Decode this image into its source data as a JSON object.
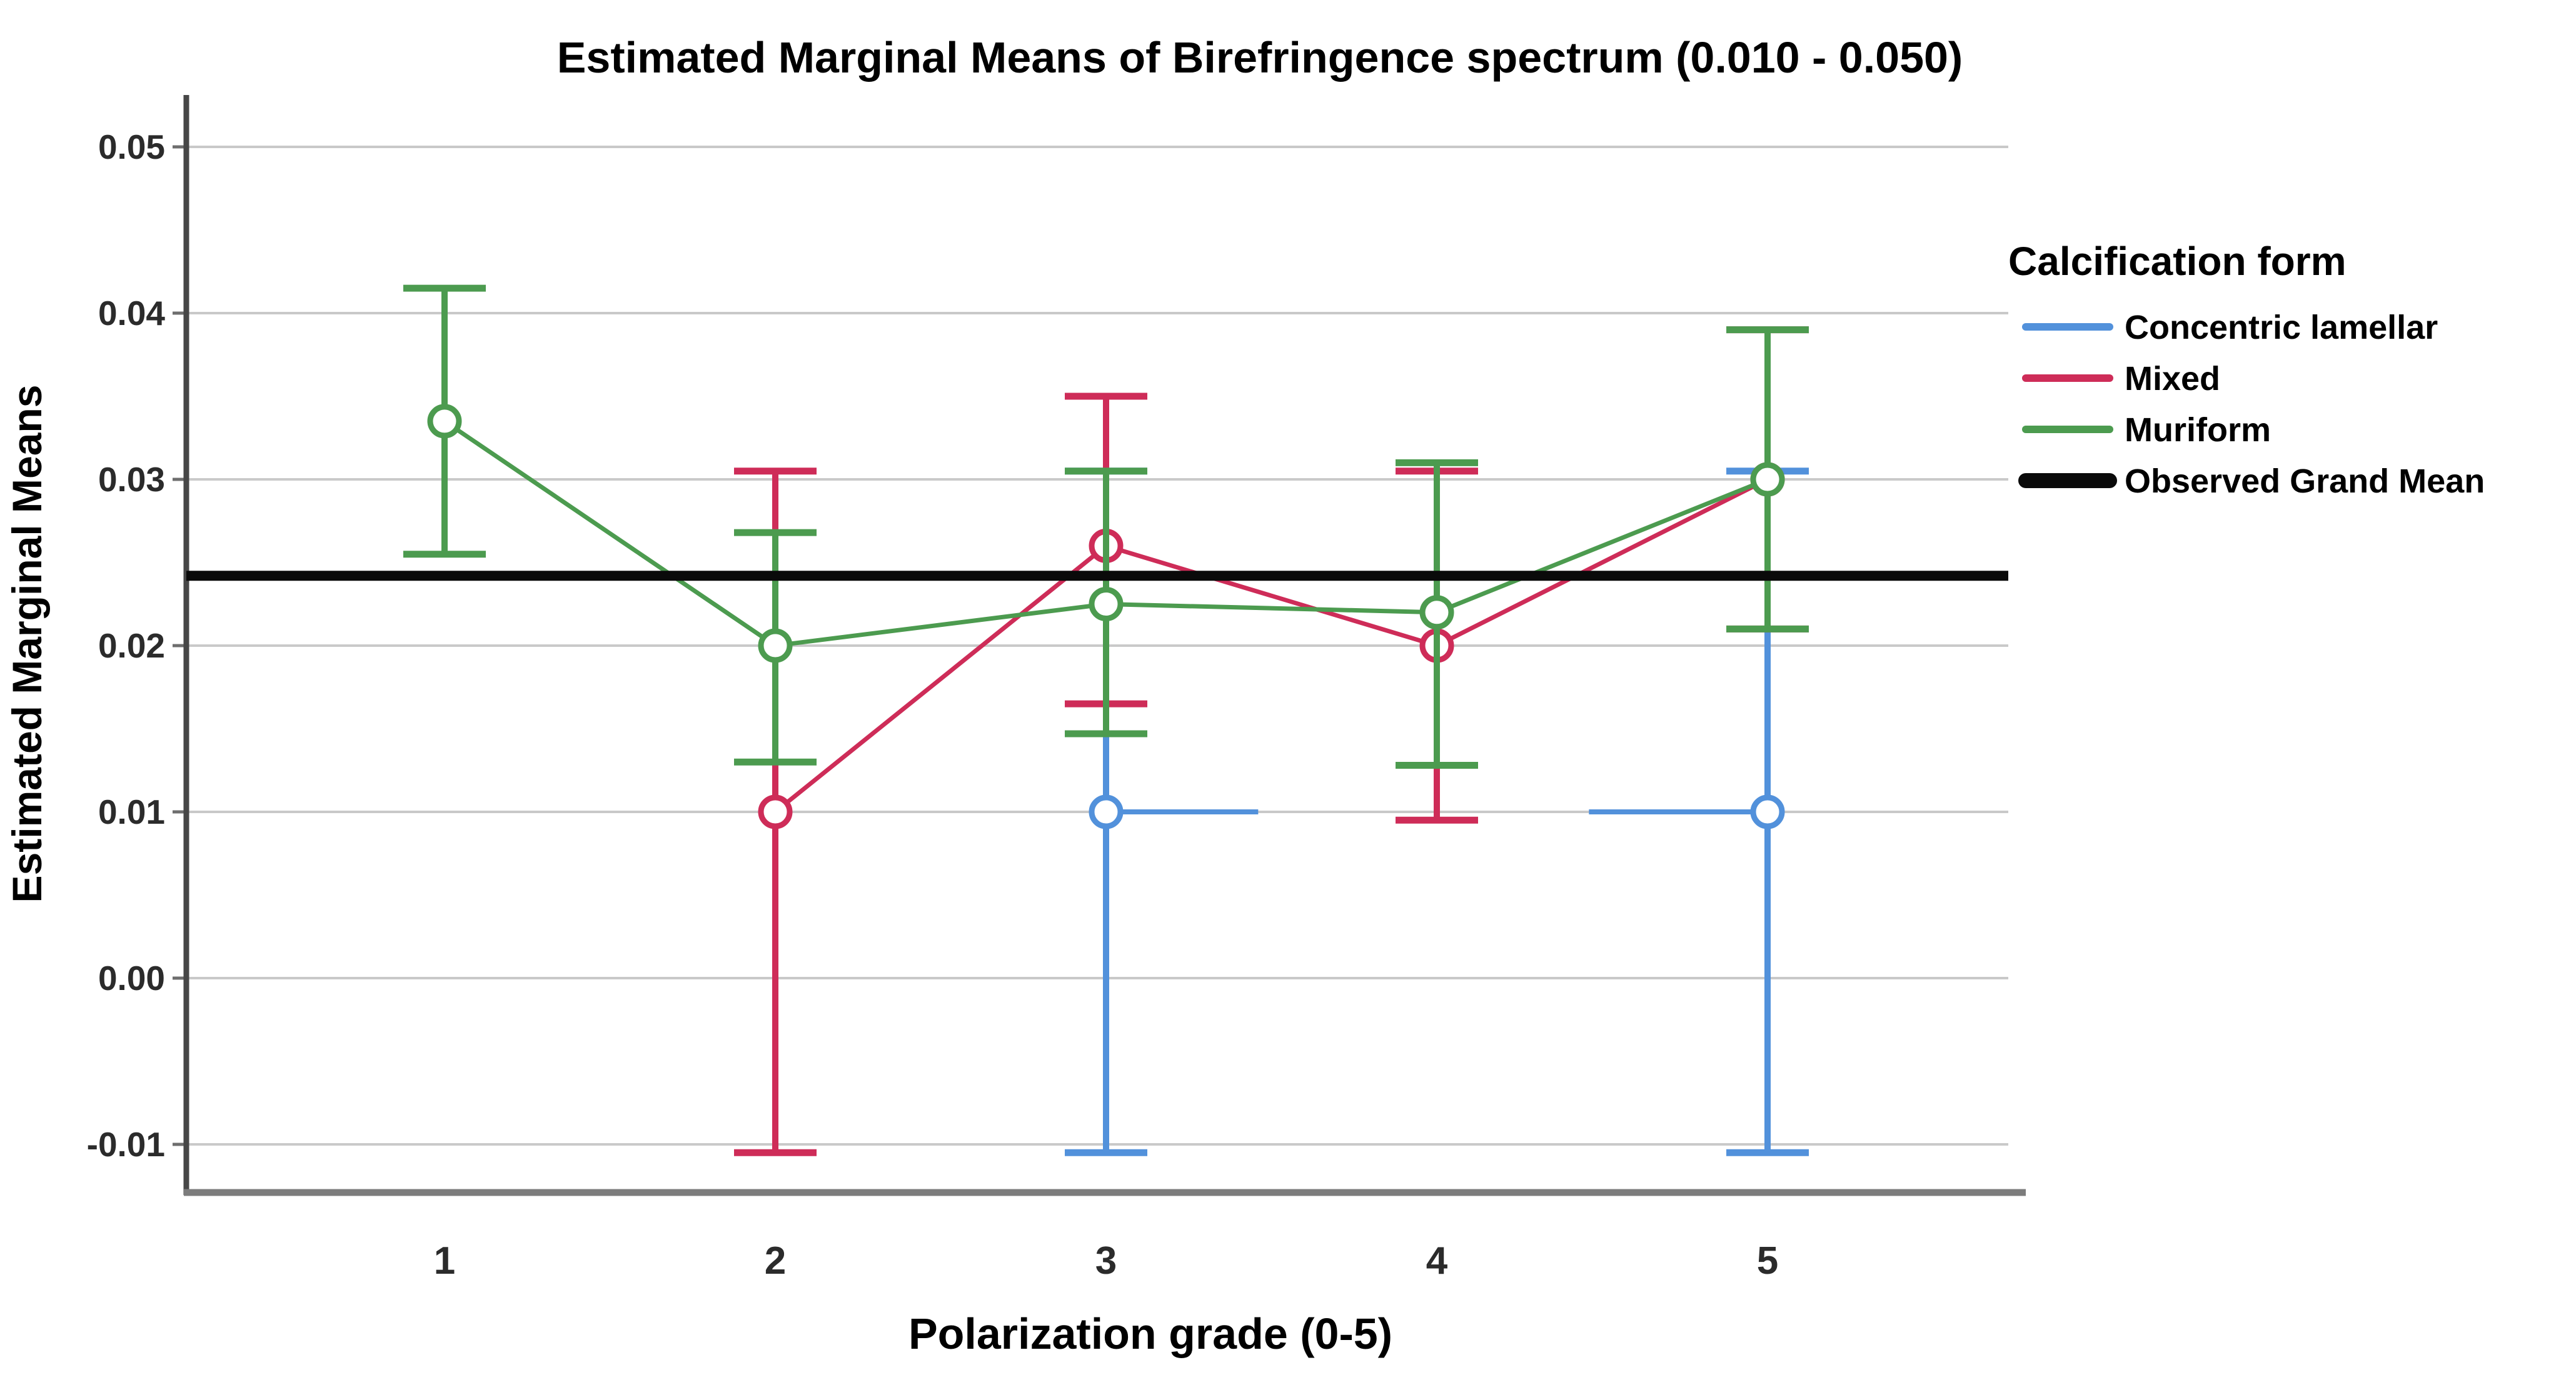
{
  "figure": {
    "title": "Estimated Marginal Means of Birefringence spectrum (0.010 - 0.050)"
  },
  "axes": {
    "x_title": "Polarization grade (0-5)",
    "y_title": "Estimated Marginal Means",
    "x_tick_labels": [
      "1",
      "2",
      "3",
      "4",
      "5"
    ],
    "y_tick_labels": [
      "0.05",
      "0.04",
      "0.03",
      "0.02",
      "0.01",
      "0.00",
      "-0.01"
    ]
  },
  "legend": {
    "title": "Calcification form",
    "items": [
      {
        "label": "Concentric lamellar",
        "color": "#5291DB",
        "thick": false
      },
      {
        "label": "Mixed",
        "color": "#CE2C58",
        "thick": false
      },
      {
        "label": "Muriform",
        "color": "#4C9B4F",
        "thick": false
      },
      {
        "label": "Observed Grand Mean",
        "color": "#0a0a0a",
        "thick": true
      }
    ]
  },
  "chart_data": {
    "type": "line",
    "title": "Estimated Marginal Means of Birefringence spectrum (0.010 - 0.050)",
    "xlabel": "Polarization grade (0-5)",
    "ylabel": "Estimated Marginal Means",
    "x_categories": [
      1,
      2,
      3,
      4,
      5
    ],
    "ylim": [
      -0.013,
      0.053
    ],
    "y_ticks": [
      0.05,
      0.04,
      0.03,
      0.02,
      0.01,
      0.0,
      -0.01
    ],
    "grid": true,
    "legend_position": "right",
    "grand_mean": 0.0242,
    "grand_mean_color": "#0a0a0a",
    "gridline_color": "#c9c9c9",
    "series": [
      {
        "name": "Concentric lamellar",
        "color": "#5291DB",
        "marker": "open-circle",
        "connect": false,
        "line_y": 0.01,
        "line_segments": [
          [
            3.0,
            3.46
          ],
          [
            4.46,
            5.0
          ]
        ],
        "points": [
          {
            "x": 3,
            "y": 0.01,
            "ci_low": -0.0105,
            "ci_high": 0.0305
          },
          {
            "x": 5,
            "y": 0.01,
            "ci_low": -0.0105,
            "ci_high": 0.0305
          }
        ]
      },
      {
        "name": "Mixed",
        "color": "#CE2C58",
        "marker": "open-circle",
        "connect": true,
        "points": [
          {
            "x": 2,
            "y": 0.01,
            "ci_low": -0.0105,
            "ci_high": 0.0305
          },
          {
            "x": 3,
            "y": 0.026,
            "ci_low": 0.0165,
            "ci_high": 0.035
          },
          {
            "x": 4,
            "y": 0.02,
            "ci_low": 0.0095,
            "ci_high": 0.0305
          },
          {
            "x": 5,
            "y": 0.03,
            "ci_low": 0.021,
            "ci_high": 0.039
          }
        ]
      },
      {
        "name": "Muriform",
        "color": "#4C9B4F",
        "marker": "open-circle",
        "connect": true,
        "points": [
          {
            "x": 1,
            "y": 0.0335,
            "ci_low": 0.0255,
            "ci_high": 0.0415
          },
          {
            "x": 2,
            "y": 0.02,
            "ci_low": 0.013,
            "ci_high": 0.0268
          },
          {
            "x": 3,
            "y": 0.0225,
            "ci_low": 0.0147,
            "ci_high": 0.0305
          },
          {
            "x": 4,
            "y": 0.022,
            "ci_low": 0.0128,
            "ci_high": 0.031
          },
          {
            "x": 5,
            "y": 0.03,
            "ci_low": 0.021,
            "ci_high": 0.039
          }
        ]
      }
    ]
  }
}
